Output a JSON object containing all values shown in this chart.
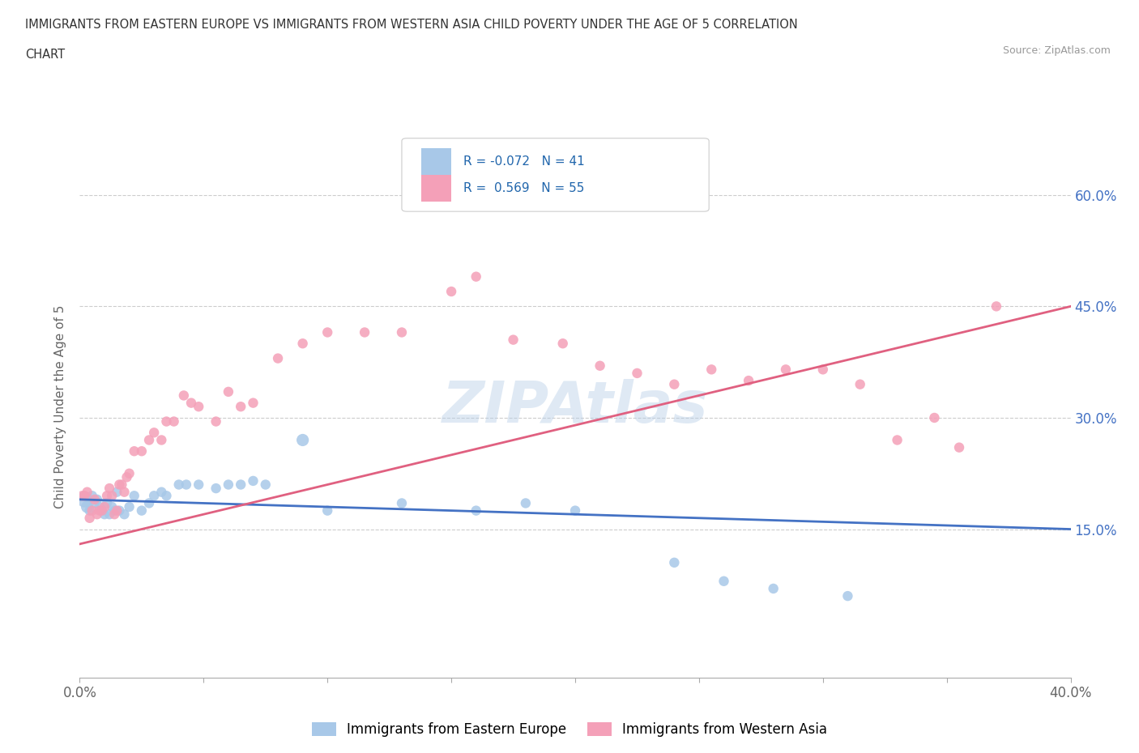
{
  "title_line1": "IMMIGRANTS FROM EASTERN EUROPE VS IMMIGRANTS FROM WESTERN ASIA CHILD POVERTY UNDER THE AGE OF 5 CORRELATION",
  "title_line2": "CHART",
  "source": "Source: ZipAtlas.com",
  "ylabel": "Child Poverty Under the Age of 5",
  "xlim": [
    0.0,
    0.4
  ],
  "ylim": [
    -0.05,
    0.68
  ],
  "ytick_positions": [
    0.15,
    0.3,
    0.45,
    0.6
  ],
  "ytick_labels": [
    "15.0%",
    "30.0%",
    "45.0%",
    "60.0%"
  ],
  "color_blue": "#a8c8e8",
  "color_pink": "#f4a0b8",
  "color_line_blue": "#4472c4",
  "color_line_pink": "#e06080",
  "color_ytick": "#4472c4",
  "background": "#ffffff",
  "watermark": "ZIPAtlas",
  "blue_scatter_x": [
    0.002,
    0.003,
    0.004,
    0.005,
    0.006,
    0.007,
    0.008,
    0.009,
    0.01,
    0.011,
    0.012,
    0.013,
    0.014,
    0.015,
    0.016,
    0.018,
    0.02,
    0.022,
    0.025,
    0.028,
    0.03,
    0.033,
    0.035,
    0.04,
    0.043,
    0.048,
    0.055,
    0.06,
    0.065,
    0.07,
    0.075,
    0.09,
    0.1,
    0.13,
    0.16,
    0.18,
    0.2,
    0.24,
    0.26,
    0.28,
    0.31
  ],
  "blue_scatter_y": [
    0.19,
    0.18,
    0.175,
    0.195,
    0.185,
    0.19,
    0.18,
    0.175,
    0.17,
    0.185,
    0.17,
    0.18,
    0.175,
    0.2,
    0.175,
    0.17,
    0.18,
    0.195,
    0.175,
    0.185,
    0.195,
    0.2,
    0.195,
    0.21,
    0.21,
    0.21,
    0.205,
    0.21,
    0.21,
    0.215,
    0.21,
    0.27,
    0.175,
    0.185,
    0.175,
    0.185,
    0.175,
    0.105,
    0.08,
    0.07,
    0.06
  ],
  "blue_scatter_s": [
    200,
    120,
    80,
    80,
    80,
    80,
    80,
    80,
    80,
    80,
    80,
    80,
    80,
    80,
    80,
    80,
    80,
    80,
    80,
    80,
    80,
    80,
    80,
    80,
    80,
    80,
    80,
    80,
    80,
    80,
    80,
    120,
    80,
    80,
    80,
    80,
    80,
    80,
    80,
    80,
    80
  ],
  "pink_scatter_x": [
    0.001,
    0.002,
    0.003,
    0.004,
    0.005,
    0.006,
    0.007,
    0.008,
    0.009,
    0.01,
    0.011,
    0.012,
    0.013,
    0.014,
    0.015,
    0.016,
    0.017,
    0.018,
    0.019,
    0.02,
    0.022,
    0.025,
    0.028,
    0.03,
    0.033,
    0.035,
    0.038,
    0.042,
    0.045,
    0.048,
    0.055,
    0.06,
    0.065,
    0.07,
    0.08,
    0.09,
    0.1,
    0.115,
    0.13,
    0.15,
    0.16,
    0.175,
    0.195,
    0.21,
    0.225,
    0.24,
    0.255,
    0.27,
    0.285,
    0.3,
    0.315,
    0.33,
    0.345,
    0.355,
    0.37
  ],
  "pink_scatter_y": [
    0.195,
    0.195,
    0.2,
    0.165,
    0.175,
    0.19,
    0.17,
    0.175,
    0.175,
    0.18,
    0.195,
    0.205,
    0.195,
    0.17,
    0.175,
    0.21,
    0.21,
    0.2,
    0.22,
    0.225,
    0.255,
    0.255,
    0.27,
    0.28,
    0.27,
    0.295,
    0.295,
    0.33,
    0.32,
    0.315,
    0.295,
    0.335,
    0.315,
    0.32,
    0.38,
    0.4,
    0.415,
    0.415,
    0.415,
    0.47,
    0.49,
    0.405,
    0.4,
    0.37,
    0.36,
    0.345,
    0.365,
    0.35,
    0.365,
    0.365,
    0.345,
    0.27,
    0.3,
    0.26,
    0.45
  ],
  "pink_scatter_s": [
    80,
    80,
    80,
    80,
    80,
    80,
    80,
    80,
    80,
    80,
    80,
    80,
    80,
    80,
    80,
    80,
    80,
    80,
    80,
    80,
    80,
    80,
    80,
    80,
    80,
    80,
    80,
    80,
    80,
    80,
    80,
    80,
    80,
    80,
    80,
    80,
    80,
    80,
    80,
    80,
    80,
    80,
    80,
    80,
    80,
    80,
    80,
    80,
    80,
    80,
    80,
    80,
    80,
    80,
    80
  ]
}
